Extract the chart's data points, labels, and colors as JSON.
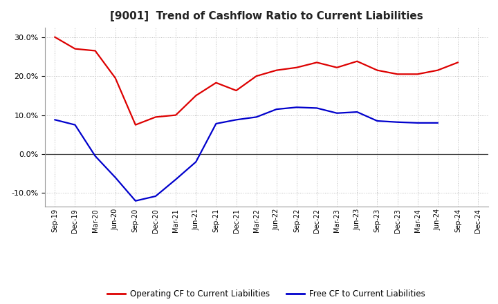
{
  "title": "[9001]  Trend of Cashflow Ratio to Current Liabilities",
  "x_labels": [
    "Sep-19",
    "Dec-19",
    "Mar-20",
    "Jun-20",
    "Sep-20",
    "Dec-20",
    "Mar-21",
    "Jun-21",
    "Sep-21",
    "Dec-21",
    "Mar-22",
    "Jun-22",
    "Sep-22",
    "Dec-22",
    "Mar-23",
    "Jun-23",
    "Sep-23",
    "Dec-23",
    "Mar-24",
    "Jun-24",
    "Sep-24",
    "Dec-24"
  ],
  "operating_cf": [
    0.3,
    0.27,
    0.265,
    0.195,
    0.075,
    0.095,
    0.1,
    0.15,
    0.183,
    0.163,
    0.2,
    0.215,
    0.222,
    0.235,
    0.222,
    0.238,
    0.215,
    0.205,
    0.205,
    0.215,
    0.235,
    null
  ],
  "free_cf": [
    0.088,
    0.075,
    -0.005,
    -0.06,
    -0.12,
    -0.108,
    -0.065,
    -0.02,
    0.078,
    0.088,
    0.095,
    0.115,
    0.12,
    0.118,
    0.105,
    0.108,
    0.085,
    0.082,
    0.08,
    0.08,
    null,
    null
  ],
  "operating_color": "#DD0000",
  "free_color": "#0000CC",
  "ylim": [
    -0.135,
    0.325
  ],
  "yticks": [
    -0.1,
    0.0,
    0.1,
    0.2,
    0.3
  ],
  "background_color": "#FFFFFF",
  "grid_color": "#BBBBBB",
  "legend_op": "Operating CF to Current Liabilities",
  "legend_free": "Free CF to Current Liabilities",
  "title_fontsize": 11,
  "tick_fontsize": 7,
  "legend_fontsize": 8.5
}
